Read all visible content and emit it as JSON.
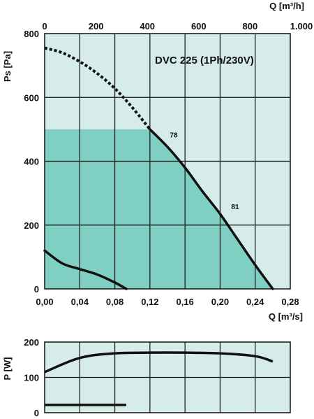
{
  "chart_data": [
    {
      "type": "line",
      "title": "DVC 225 (1Ph/230V)",
      "xlabel": "Q [m³/s]",
      "x2label": "Q [m³/h]",
      "ylabel": "Ps [Pa]",
      "xlim": [
        0,
        0.28
      ],
      "ylim": [
        0,
        800
      ],
      "x2lim": [
        0,
        1000
      ],
      "x_ticks": [
        "0,00",
        "0,04",
        "0,08",
        "0,12",
        "0,16",
        "0,20",
        "0,24",
        "0,28"
      ],
      "x2_ticks": [
        "0",
        "200",
        "400",
        "600",
        "800",
        "1.000"
      ],
      "y_ticks": [
        "0",
        "200",
        "400",
        "600",
        "800"
      ],
      "grid": true,
      "colors": {
        "background": "#d6ece8",
        "operating_zone": "#7fcfc3",
        "curve": "#111111"
      },
      "operating_zone": {
        "q_max_at_top": 0.12,
        "ps_top": 500
      },
      "series": [
        {
          "style": "dashed",
          "x": [
            0.0,
            0.02,
            0.04,
            0.06,
            0.08,
            0.1,
            0.12
          ],
          "y": [
            755,
            740,
            712,
            675,
            628,
            568,
            500
          ]
        },
        {
          "style": "solid",
          "x": [
            0.12,
            0.14,
            0.16,
            0.18,
            0.2,
            0.22,
            0.24,
            0.26
          ],
          "y": [
            500,
            445,
            380,
            305,
            235,
            155,
            75,
            0
          ]
        },
        {
          "style": "solid",
          "x": [
            0.0,
            0.02,
            0.04,
            0.06,
            0.08,
            0.093
          ],
          "y": [
            120,
            80,
            62,
            45,
            20,
            0
          ]
        }
      ],
      "annotations": [
        {
          "text": "78",
          "x": 0.13,
          "y": 470
        },
        {
          "text": "81",
          "x": 0.2,
          "y": 245
        }
      ]
    },
    {
      "type": "line",
      "ylabel": "P [W]",
      "xlim": [
        0,
        0.28
      ],
      "ylim": [
        0,
        200
      ],
      "y_ticks": [
        "0",
        "100",
        "200"
      ],
      "grid": true,
      "colors": {
        "background": "#d6ece8",
        "curve": "#111111"
      },
      "series": [
        {
          "style": "solid",
          "x": [
            0.0,
            0.04,
            0.08,
            0.12,
            0.16,
            0.2,
            0.24,
            0.26
          ],
          "y": [
            115,
            155,
            168,
            170,
            170,
            168,
            160,
            145
          ]
        },
        {
          "style": "solid",
          "x": [
            0.0,
            0.093
          ],
          "y": [
            22,
            22
          ]
        }
      ]
    }
  ]
}
